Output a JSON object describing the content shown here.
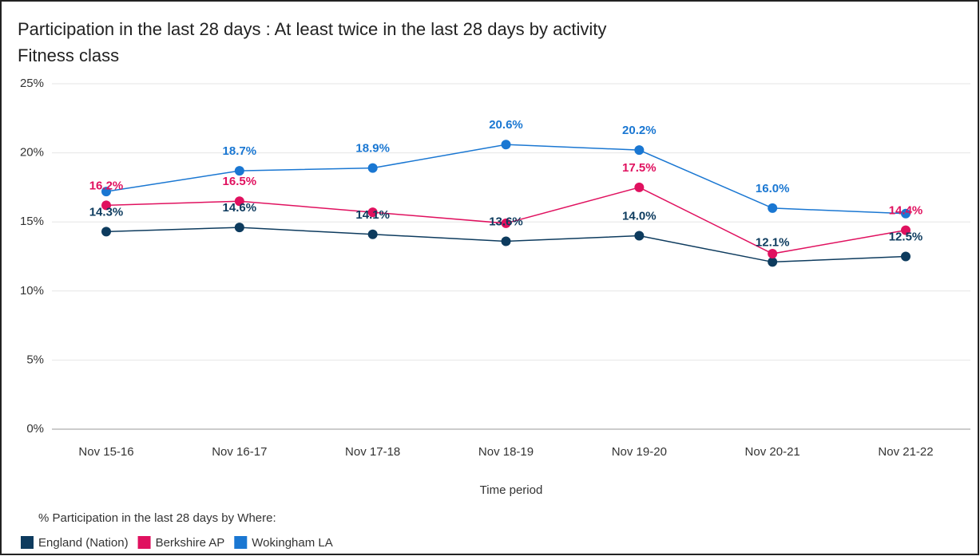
{
  "chart_data": {
    "type": "line",
    "title": "Participation in the last 28 days : At least twice in the last 28 days  by activity",
    "subtitle": "Fitness class",
    "x_label": "Time period",
    "legend_title": "% Participation in the last 28 days by Where:",
    "categories": [
      "Nov 15-16",
      "Nov 16-17",
      "Nov 17-18",
      "Nov 18-19",
      "Nov 19-20",
      "Nov 20-21",
      "Nov 21-22"
    ],
    "series": [
      {
        "name": "England (Nation)",
        "color": "#0d3b5e",
        "values": [
          14.3,
          14.6,
          14.1,
          13.6,
          14.0,
          12.1,
          12.5
        ],
        "value_labels": [
          "14.3%",
          "14.6%",
          "14.1%",
          "13.6%",
          "14.0%",
          "12.1%",
          "12.5%"
        ]
      },
      {
        "name": "Berkshire AP",
        "color": "#e0115f",
        "values": [
          16.2,
          16.5,
          15.7,
          14.9,
          17.5,
          12.7,
          14.4
        ],
        "value_labels": [
          "16.2%",
          "16.5%",
          null,
          null,
          "17.5%",
          null,
          "14.4%"
        ]
      },
      {
        "name": "Wokingham  LA",
        "color": "#1a77d2",
        "values": [
          17.2,
          18.7,
          18.9,
          20.6,
          20.2,
          16.0,
          15.6
        ],
        "value_labels": [
          null,
          "18.7%",
          "18.9%",
          "20.6%",
          "20.2%",
          "16.0%",
          null
        ]
      }
    ],
    "ylim": [
      0,
      25
    ],
    "yticks": [
      {
        "value": 0,
        "label": "0%"
      },
      {
        "value": 5,
        "label": "5%"
      },
      {
        "value": 10,
        "label": "10%"
      },
      {
        "value": 15,
        "label": "15%"
      },
      {
        "value": 20,
        "label": "20%"
      },
      {
        "value": 25,
        "label": "25%"
      }
    ],
    "grid": true
  }
}
